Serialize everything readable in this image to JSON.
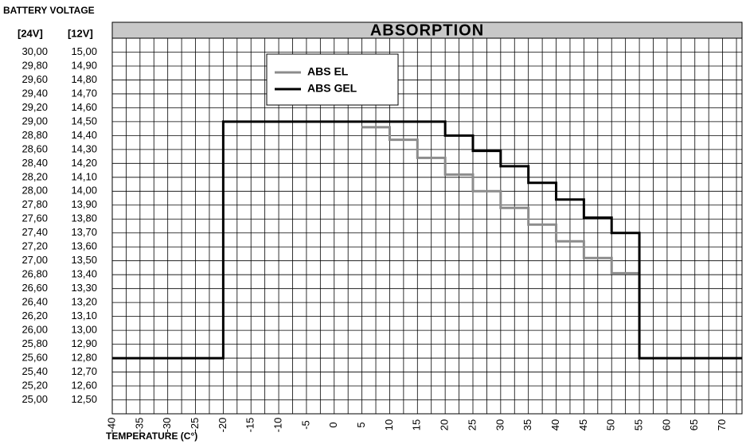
{
  "chart_data": {
    "type": "line",
    "step": "post",
    "title": "ABSORPTION",
    "y_title": "BATTERY VOLTAGE",
    "y_label": "[12V]",
    "y2_label": "[24V]",
    "x_label": "TEMPERATURE (C°)",
    "xlim": [
      -40,
      73.5
    ],
    "xticks": [
      -40,
      -35,
      -30,
      -25,
      -20,
      -15,
      -10,
      -5,
      0,
      5,
      10,
      15,
      20,
      25,
      30,
      35,
      40,
      45,
      50,
      55,
      60,
      65,
      70
    ],
    "ylim": [
      12.4,
      15.1
    ],
    "yticks": [
      {
        "value": 15.0,
        "label": "15,00"
      },
      {
        "value": 14.9,
        "label": "14,90"
      },
      {
        "value": 14.8,
        "label": "14,80"
      },
      {
        "value": 14.7,
        "label": "14,70"
      },
      {
        "value": 14.6,
        "label": "14,60"
      },
      {
        "value": 14.5,
        "label": "14,50"
      },
      {
        "value": 14.4,
        "label": "14,40"
      },
      {
        "value": 14.3,
        "label": "14,30"
      },
      {
        "value": 14.2,
        "label": "14,20"
      },
      {
        "value": 14.1,
        "label": "14,10"
      },
      {
        "value": 14.0,
        "label": "14,00"
      },
      {
        "value": 13.9,
        "label": "13,90"
      },
      {
        "value": 13.8,
        "label": "13,80"
      },
      {
        "value": 13.7,
        "label": "13,70"
      },
      {
        "value": 13.6,
        "label": "13,60"
      },
      {
        "value": 13.5,
        "label": "13,50"
      },
      {
        "value": 13.4,
        "label": "13,40"
      },
      {
        "value": 13.3,
        "label": "13,30"
      },
      {
        "value": 13.2,
        "label": "13,20"
      },
      {
        "value": 13.1,
        "label": "13,10"
      },
      {
        "value": 13.0,
        "label": "13,00"
      },
      {
        "value": 12.9,
        "label": "12,90"
      },
      {
        "value": 12.8,
        "label": "12,80"
      },
      {
        "value": 12.7,
        "label": "12,70"
      },
      {
        "value": 12.6,
        "label": "12,60"
      },
      {
        "value": 12.5,
        "label": "12,50"
      }
    ],
    "y2lim": [
      24.8,
      30.2
    ],
    "y2ticks": [
      {
        "value": 30.0,
        "label": "30,00"
      },
      {
        "value": 29.8,
        "label": "29,80"
      },
      {
        "value": 29.6,
        "label": "29,60"
      },
      {
        "value": 29.4,
        "label": "29,40"
      },
      {
        "value": 29.2,
        "label": "29,20"
      },
      {
        "value": 29.0,
        "label": "29,00"
      },
      {
        "value": 28.8,
        "label": "28,80"
      },
      {
        "value": 28.6,
        "label": "28,60"
      },
      {
        "value": 28.4,
        "label": "28,40"
      },
      {
        "value": 28.2,
        "label": "28,20"
      },
      {
        "value": 28.0,
        "label": "28,00"
      },
      {
        "value": 27.8,
        "label": "27,80"
      },
      {
        "value": 27.6,
        "label": "27,60"
      },
      {
        "value": 27.4,
        "label": "27,40"
      },
      {
        "value": 27.2,
        "label": "27,20"
      },
      {
        "value": 27.0,
        "label": "27,00"
      },
      {
        "value": 26.8,
        "label": "26,80"
      },
      {
        "value": 26.6,
        "label": "26,60"
      },
      {
        "value": 26.4,
        "label": "26,40"
      },
      {
        "value": 26.2,
        "label": "26,20"
      },
      {
        "value": 26.0,
        "label": "26,00"
      },
      {
        "value": 25.8,
        "label": "25,80"
      },
      {
        "value": 25.6,
        "label": "25,60"
      },
      {
        "value": 25.4,
        "label": "25,40"
      },
      {
        "value": 25.2,
        "label": "25,20"
      },
      {
        "value": 25.0,
        "label": "25,00"
      }
    ],
    "grid": true,
    "series": [
      {
        "name": "ABS EL",
        "color": "#8c8c8c",
        "x": [
          5,
          10,
          15,
          20,
          25,
          30,
          35,
          40,
          45,
          50,
          55
        ],
        "values": [
          14.46,
          14.37,
          14.24,
          14.12,
          14.0,
          13.88,
          13.76,
          13.64,
          13.52,
          13.41,
          13.41
        ]
      },
      {
        "name": "ABS GEL",
        "color": "#000000",
        "x": [
          -40,
          -20,
          20,
          25,
          30,
          35,
          40,
          45,
          50,
          55,
          73.5
        ],
        "values": [
          12.8,
          14.5,
          14.4,
          14.29,
          14.18,
          14.06,
          13.94,
          13.81,
          13.7,
          12.8,
          12.8
        ]
      }
    ]
  }
}
